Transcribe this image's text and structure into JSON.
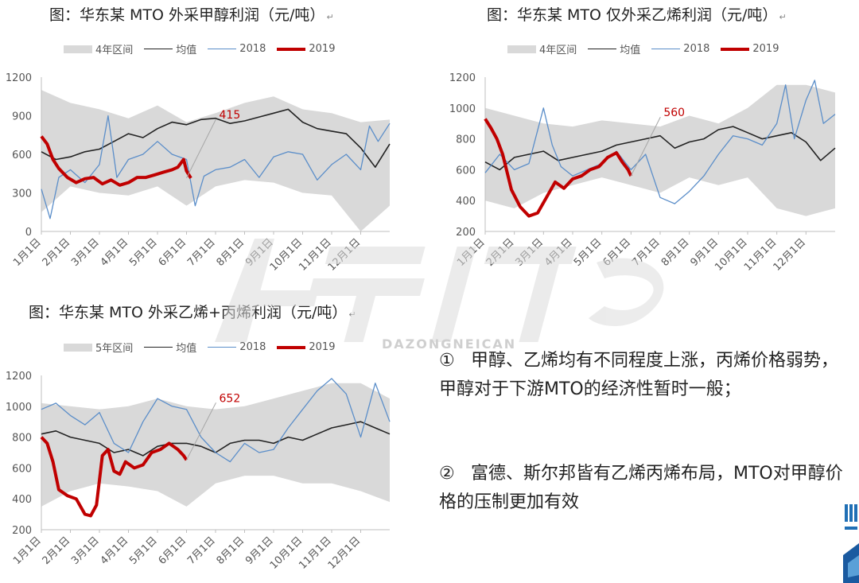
{
  "notes": [
    {
      "num": "①",
      "text": "甲醇、乙烯均有不同程度上涨，丙烯价格弱势，甲醇对于下游MTO的经济性暂时一般；"
    },
    {
      "num": "②",
      "text": "富德、斯尔邦皆有乙烯丙烯布局，MTO对甲醇价格的压制更加有效"
    }
  ],
  "watermark": {
    "subtext": "DAZONGNEICAN"
  },
  "colors": {
    "band": "#d9d9d9",
    "mean": "#222222",
    "y2018": "#5b8ec9",
    "y2019": "#c00000"
  },
  "chart_data": [
    {
      "type": "line",
      "title": "图：华东某 MTO 外采甲醇利润（元/吨）",
      "legend": {
        "band": "4年区间",
        "mean": "均值",
        "s2018": "2018",
        "s2019": "2019"
      },
      "ylim": [
        0,
        1200
      ],
      "yticks": [
        0,
        300,
        600,
        900,
        1200
      ],
      "categories": [
        "1月1日",
        "2月1日",
        "3月1日",
        "4月1日",
        "5月1日",
        "6月1日",
        "7月1日",
        "8月1日",
        "9月1日",
        "10月1日",
        "11月1日",
        "12月1日"
      ],
      "annotation": {
        "text": "415",
        "x": 5.0,
        "y": 415
      },
      "band_upper": [
        1100,
        1000,
        950,
        880,
        980,
        850,
        920,
        1000,
        1050,
        950,
        920,
        850,
        870
      ],
      "band_lower": [
        150,
        350,
        300,
        280,
        350,
        200,
        350,
        400,
        380,
        300,
        280,
        0,
        200
      ],
      "series": [
        {
          "name": "均值",
          "x": [
            0,
            0.5,
            1,
            1.5,
            2,
            2.5,
            3,
            3.5,
            4,
            4.5,
            5,
            5.5,
            6,
            6.5,
            7,
            7.5,
            8,
            8.5,
            9,
            9.5,
            10,
            10.5,
            11,
            11.5,
            12
          ],
          "values": [
            620,
            560,
            580,
            620,
            640,
            700,
            760,
            730,
            800,
            850,
            830,
            870,
            880,
            840,
            860,
            890,
            920,
            950,
            850,
            800,
            780,
            760,
            650,
            500,
            680
          ]
        },
        {
          "name": "2018",
          "x": [
            0,
            0.3,
            0.6,
            1,
            1.5,
            2,
            2.3,
            2.6,
            3,
            3.5,
            4,
            4.5,
            5,
            5.3,
            5.6,
            6,
            6.5,
            7,
            7.5,
            8,
            8.5,
            9,
            9.5,
            10,
            10.5,
            11,
            11.3,
            11.6,
            12
          ],
          "values": [
            330,
            100,
            420,
            480,
            380,
            520,
            900,
            420,
            560,
            600,
            700,
            600,
            560,
            200,
            430,
            480,
            500,
            560,
            420,
            580,
            620,
            600,
            400,
            520,
            600,
            480,
            820,
            700,
            840
          ]
        },
        {
          "name": "2019",
          "x": [
            0,
            0.2,
            0.4,
            0.6,
            0.9,
            1.2,
            1.5,
            1.8,
            2.1,
            2.4,
            2.7,
            3.0,
            3.3,
            3.6,
            3.9,
            4.2,
            4.5,
            4.7,
            4.9,
            5.0,
            5.15
          ],
          "values": [
            740,
            680,
            560,
            490,
            420,
            380,
            410,
            420,
            370,
            400,
            360,
            380,
            420,
            420,
            440,
            460,
            480,
            500,
            560,
            470,
            415
          ]
        }
      ]
    },
    {
      "type": "line",
      "title": "图：华东某 MTO 仅外采乙烯利润（元/吨）",
      "legend": {
        "band": "4年区间",
        "mean": "均值",
        "s2018": "2018",
        "s2019": "2019"
      },
      "ylim": [
        200,
        1200
      ],
      "yticks": [
        200,
        400,
        600,
        800,
        1000,
        1200
      ],
      "categories": [
        "1月1日",
        "2月1日",
        "3月1日",
        "4月1日",
        "5月1日",
        "6月1日",
        "7月1日",
        "8月1日",
        "9月1日",
        "10月1日",
        "11月1日",
        "12月1日"
      ],
      "annotation": {
        "text": "560",
        "x": 5.0,
        "y": 560
      },
      "band_upper": [
        1000,
        950,
        900,
        880,
        920,
        900,
        880,
        950,
        900,
        1000,
        1150,
        1150,
        1100
      ],
      "band_lower": [
        400,
        350,
        450,
        500,
        550,
        500,
        450,
        550,
        500,
        550,
        350,
        300,
        350
      ],
      "series": [
        {
          "name": "均值",
          "x": [
            0,
            0.5,
            1,
            1.5,
            2,
            2.5,
            3,
            3.5,
            4,
            4.5,
            5,
            5.5,
            6,
            6.5,
            7,
            7.5,
            8,
            8.5,
            9,
            9.5,
            10,
            10.5,
            11,
            11.5,
            12
          ],
          "values": [
            650,
            600,
            680,
            700,
            720,
            660,
            680,
            700,
            720,
            760,
            780,
            800,
            820,
            740,
            780,
            800,
            860,
            880,
            840,
            800,
            820,
            840,
            780,
            660,
            740
          ]
        },
        {
          "name": "2018",
          "x": [
            0,
            0.5,
            1,
            1.5,
            2,
            2.3,
            2.6,
            3,
            3.5,
            4,
            4.5,
            5,
            5.5,
            6,
            6.5,
            7,
            7.5,
            8,
            8.5,
            9,
            9.5,
            10,
            10.3,
            10.6,
            11,
            11.3,
            11.6,
            12
          ],
          "values": [
            580,
            700,
            600,
            640,
            1000,
            760,
            620,
            560,
            600,
            640,
            720,
            600,
            700,
            420,
            380,
            460,
            560,
            700,
            820,
            800,
            760,
            900,
            1150,
            800,
            1050,
            1180,
            900,
            960
          ]
        },
        {
          "name": "2019",
          "x": [
            0,
            0.2,
            0.4,
            0.6,
            0.9,
            1.2,
            1.5,
            1.8,
            2.1,
            2.4,
            2.7,
            3.0,
            3.3,
            3.6,
            3.9,
            4.2,
            4.5,
            4.7,
            4.9,
            5.0
          ],
          "values": [
            930,
            870,
            800,
            700,
            470,
            360,
            300,
            320,
            420,
            520,
            480,
            540,
            560,
            600,
            620,
            680,
            710,
            650,
            600,
            560
          ]
        }
      ]
    },
    {
      "type": "line",
      "title": "图：华东某 MTO 外采乙烯+丙烯利润（元/吨）",
      "legend": {
        "band": "5年区间",
        "mean": "均值",
        "s2018": "2018",
        "s2019": "2019"
      },
      "ylim": [
        200,
        1200
      ],
      "yticks": [
        200,
        400,
        600,
        800,
        1000,
        1200
      ],
      "categories": [
        "1月1日",
        "2月1日",
        "3月1日",
        "4月1日",
        "5月1日",
        "6月1日",
        "7月1日",
        "8月1日",
        "9月1日",
        "10月1日",
        "11月1日",
        "12月1日"
      ],
      "annotation": {
        "text": "652",
        "x": 5.0,
        "y": 652
      },
      "band_upper": [
        1020,
        1000,
        980,
        1000,
        1050,
        1000,
        980,
        1000,
        1050,
        1100,
        1150,
        1150,
        1050
      ],
      "band_lower": [
        350,
        450,
        500,
        480,
        450,
        350,
        500,
        550,
        550,
        500,
        500,
        450,
        380
      ],
      "series": [
        {
          "name": "均值",
          "x": [
            0,
            0.5,
            1,
            1.5,
            2,
            2.5,
            3,
            3.5,
            4,
            4.5,
            5,
            5.5,
            6,
            6.5,
            7,
            7.5,
            8,
            8.5,
            9,
            9.5,
            10,
            10.5,
            11,
            11.5,
            12
          ],
          "values": [
            820,
            840,
            800,
            780,
            760,
            700,
            720,
            680,
            740,
            760,
            760,
            740,
            700,
            760,
            780,
            780,
            760,
            800,
            780,
            820,
            860,
            880,
            900,
            860,
            820
          ]
        },
        {
          "name": "2018",
          "x": [
            0,
            0.5,
            1,
            1.5,
            2,
            2.5,
            3,
            3.5,
            4,
            4.5,
            5,
            5.5,
            6,
            6.5,
            7,
            7.5,
            8,
            8.5,
            9,
            9.5,
            10,
            10.5,
            11,
            11.5,
            12
          ],
          "values": [
            980,
            1020,
            940,
            880,
            960,
            760,
            700,
            900,
            1050,
            1000,
            980,
            800,
            700,
            640,
            760,
            700,
            720,
            860,
            980,
            1100,
            1180,
            1080,
            800,
            1150,
            900
          ]
        },
        {
          "name": "2019",
          "x": [
            0,
            0.2,
            0.4,
            0.6,
            0.9,
            1.2,
            1.5,
            1.7,
            1.9,
            2.1,
            2.3,
            2.5,
            2.7,
            2.9,
            3.2,
            3.5,
            3.8,
            4.1,
            4.4,
            4.7,
            4.9,
            5.0
          ],
          "values": [
            800,
            760,
            640,
            460,
            420,
            400,
            300,
            290,
            360,
            680,
            720,
            580,
            560,
            640,
            600,
            620,
            700,
            720,
            760,
            720,
            680,
            652
          ]
        }
      ]
    }
  ]
}
